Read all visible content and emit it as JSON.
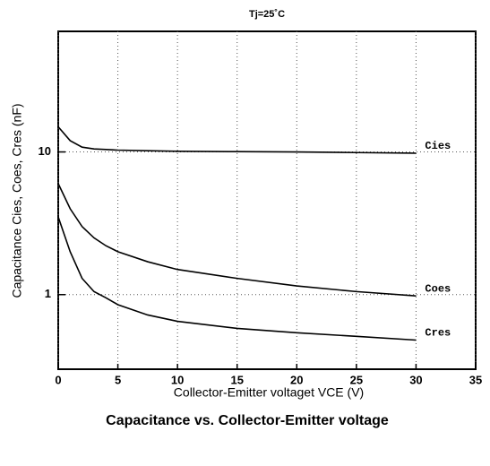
{
  "chart_data": {
    "type": "line",
    "title": "Capacitance vs. Collector-Emitter voltage",
    "annotation": "Tj=25˚C",
    "x_label": "Collector-Emitter voltaget   VCE (V)",
    "y_label": "Capacitance   Cies, Coes, Cres (nF)",
    "x": [
      0,
      1,
      2,
      3,
      4,
      5,
      7.5,
      10,
      15,
      20,
      25,
      30
    ],
    "series": [
      {
        "name": "Cies",
        "color": "#000000",
        "values": [
          15,
          12,
          10.8,
          10.5,
          10.4,
          10.3,
          10.2,
          10.1,
          10.05,
          10,
          9.9,
          9.8
        ]
      },
      {
        "name": "Coes",
        "color": "#000000",
        "values": [
          6,
          4,
          3,
          2.5,
          2.2,
          2,
          1.7,
          1.5,
          1.3,
          1.15,
          1.05,
          0.98
        ]
      },
      {
        "name": "Cres",
        "color": "#000000",
        "values": [
          3.5,
          2,
          1.3,
          1.05,
          0.95,
          0.85,
          0.72,
          0.65,
          0.58,
          0.54,
          0.51,
          0.48
        ]
      }
    ],
    "xlim": [
      0,
      35
    ],
    "xticks": [
      0,
      5,
      10,
      15,
      20,
      25,
      30,
      35
    ],
    "ylim": [
      0.3,
      70
    ],
    "yticks": [
      1,
      10
    ],
    "y_log": true,
    "grid": true
  }
}
